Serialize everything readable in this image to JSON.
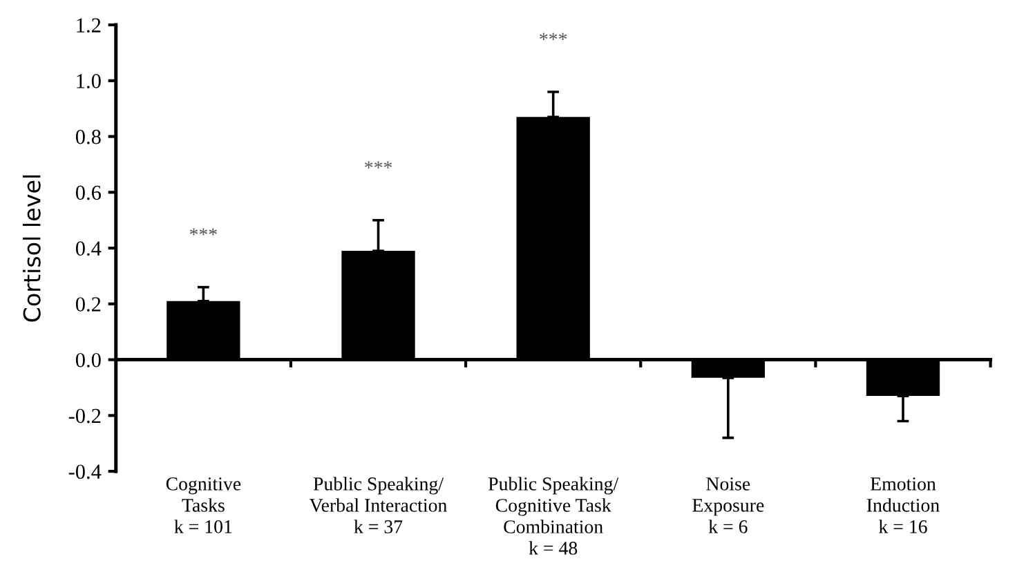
{
  "chart_data": {
    "type": "bar",
    "ylabel": "Cortisol level",
    "categories": [
      "Cognitive\nTasks\nk = 101",
      "Public Speaking/\nVerbal Interaction\nk = 37",
      "Public Speaking/\nCognitive Task\nCombination\nk = 48",
      "Noise\nExposure\nk = 6",
      "Emotion\nInduction\nk = 16"
    ],
    "values": [
      0.21,
      0.39,
      0.87,
      -0.065,
      -0.13
    ],
    "errors": [
      [
        0.21,
        0.26
      ],
      [
        0.39,
        0.5
      ],
      [
        0.87,
        0.96
      ],
      [
        -0.28,
        -0.065
      ],
      [
        -0.22,
        -0.13
      ]
    ],
    "color": "#000000",
    "ylim": [
      -0.4,
      1.2
    ],
    "yticks": [
      {
        "value": -0.4,
        "label": "-0.4"
      },
      {
        "value": -0.2,
        "label": "-0.2"
      },
      {
        "value": 0,
        "label": "0.0"
      },
      {
        "value": 0.2,
        "label": "0.2"
      },
      {
        "value": 0.4,
        "label": "0.4"
      },
      {
        "value": 0.6,
        "label": "0.6"
      },
      {
        "value": 0.8,
        "label": "0.8"
      },
      {
        "value": 1.0,
        "label": "1.0"
      },
      {
        "value": 1.2,
        "label": "1.2"
      }
    ],
    "annotations": [
      "***",
      "***",
      "***"
    ]
  }
}
